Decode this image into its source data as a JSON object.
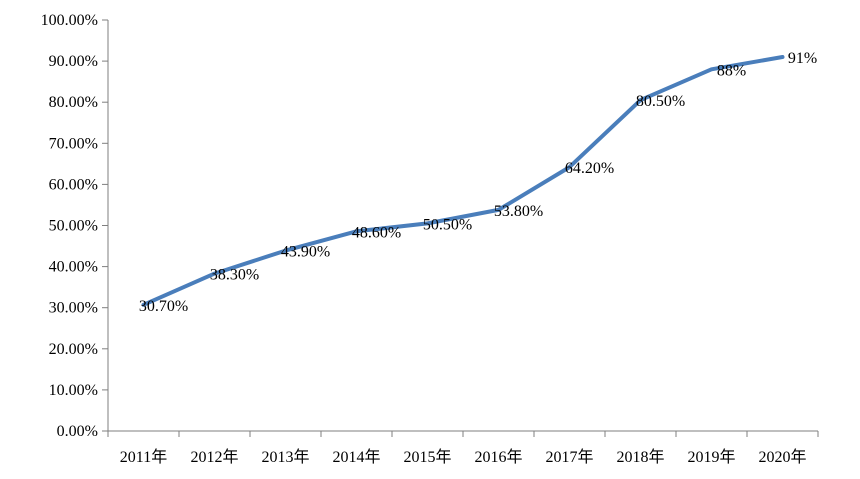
{
  "chart_data": {
    "type": "line",
    "title": "",
    "xlabel": "",
    "ylabel": "",
    "categories": [
      "2011年",
      "2012年",
      "2013年",
      "2014年",
      "2015年",
      "2016年",
      "2017年",
      "2018年",
      "2019年",
      "2020年"
    ],
    "series": [
      {
        "values": [
          30.7,
          38.3,
          43.9,
          48.6,
          50.5,
          53.8,
          64.2,
          80.5,
          88,
          91
        ],
        "data_labels": [
          "30.70%",
          "38.30%",
          "43.90%",
          "48.60%",
          "50.50%",
          "53.80%",
          "64.20%",
          "80.50%",
          "88%",
          "91%"
        ],
        "color": "#4a7ebb"
      }
    ],
    "ylim": [
      0,
      100
    ],
    "yticks": [
      0,
      10,
      20,
      30,
      40,
      50,
      60,
      70,
      80,
      90,
      100
    ],
    "ytick_labels": [
      "0.00%",
      "10.00%",
      "20.00%",
      "30.00%",
      "40.00%",
      "50.00%",
      "60.00%",
      "70.00%",
      "80.00%",
      "90.00%",
      "100.00%"
    ],
    "grid": false,
    "legend": "none"
  }
}
